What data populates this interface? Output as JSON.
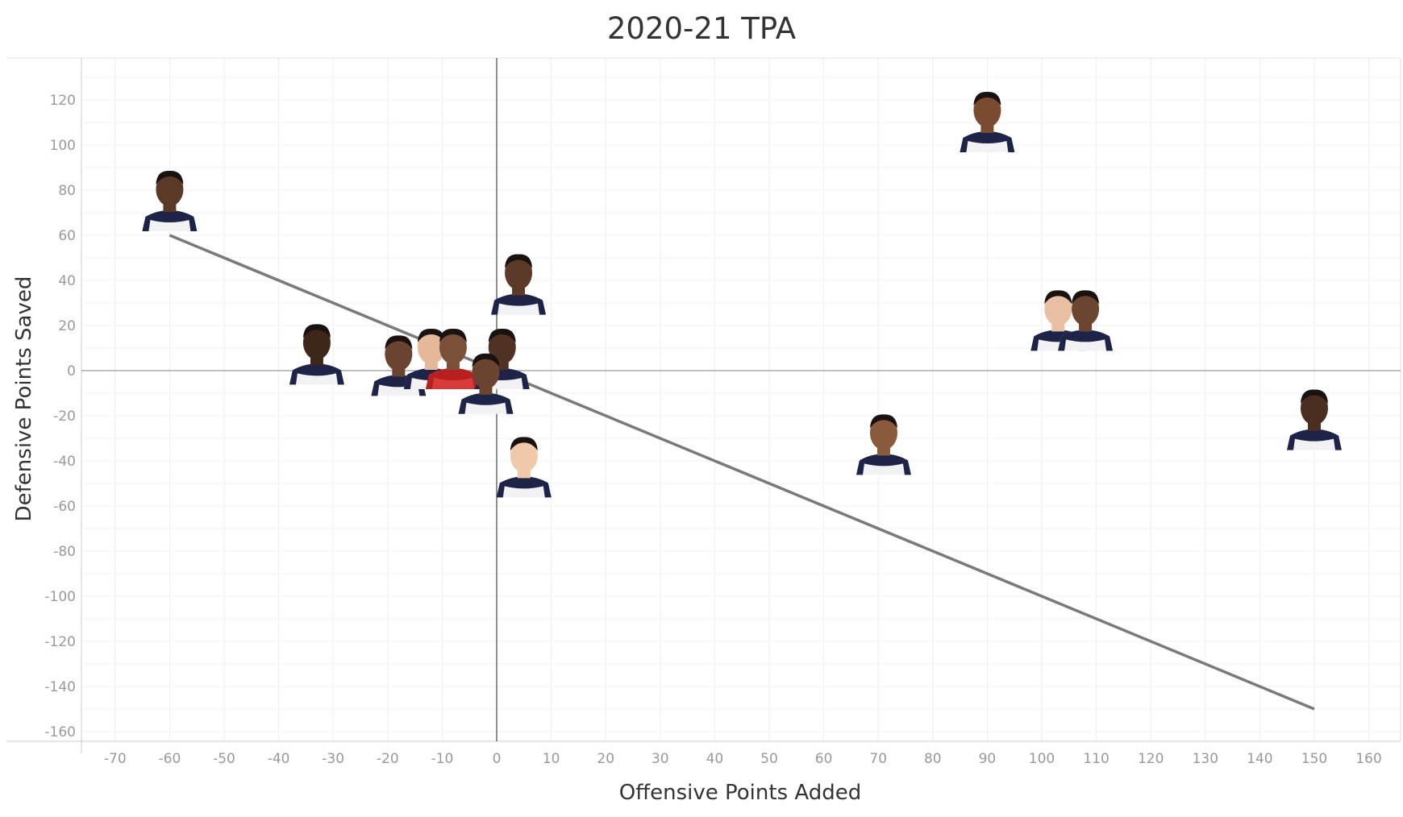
{
  "chart_data": {
    "type": "scatter",
    "title": "2020-21 TPA",
    "xlabel": "Offensive Points Added",
    "ylabel": "Defensive Points Saved",
    "xlim": [
      -76,
      168
    ],
    "ylim": [
      -164,
      138
    ],
    "xticks": [
      -70,
      -60,
      -50,
      -40,
      -30,
      -20,
      -10,
      0,
      10,
      20,
      30,
      40,
      50,
      60,
      70,
      80,
      90,
      100,
      110,
      120,
      130,
      140,
      150,
      160
    ],
    "yticks": [
      120,
      100,
      80,
      60,
      40,
      20,
      0,
      -20,
      -40,
      -60,
      -80,
      -100,
      -120,
      -140,
      -160
    ],
    "grid": true,
    "marker": "player-headshot",
    "points": [
      {
        "x": -60,
        "y": 75
      },
      {
        "x": 90,
        "y": 110
      },
      {
        "x": 103,
        "y": 22
      },
      {
        "x": 108,
        "y": 22
      },
      {
        "x": 150,
        "y": -22
      },
      {
        "x": 71,
        "y": -33
      },
      {
        "x": 5,
        "y": -43
      },
      {
        "x": 4,
        "y": 38
      },
      {
        "x": -33,
        "y": 7
      },
      {
        "x": -18,
        "y": 2
      },
      {
        "x": -12,
        "y": 5
      },
      {
        "x": -8,
        "y": 5
      },
      {
        "x": 1,
        "y": 5
      },
      {
        "x": -2,
        "y": -6
      }
    ],
    "trendline": {
      "x": [
        -60,
        150
      ],
      "y": [
        60,
        -150
      ]
    },
    "colors": {
      "trendline": "#7a7a7a",
      "jersey": "#f2f2f5",
      "trim": "#1d2448",
      "grid": "#eeeeee"
    }
  }
}
